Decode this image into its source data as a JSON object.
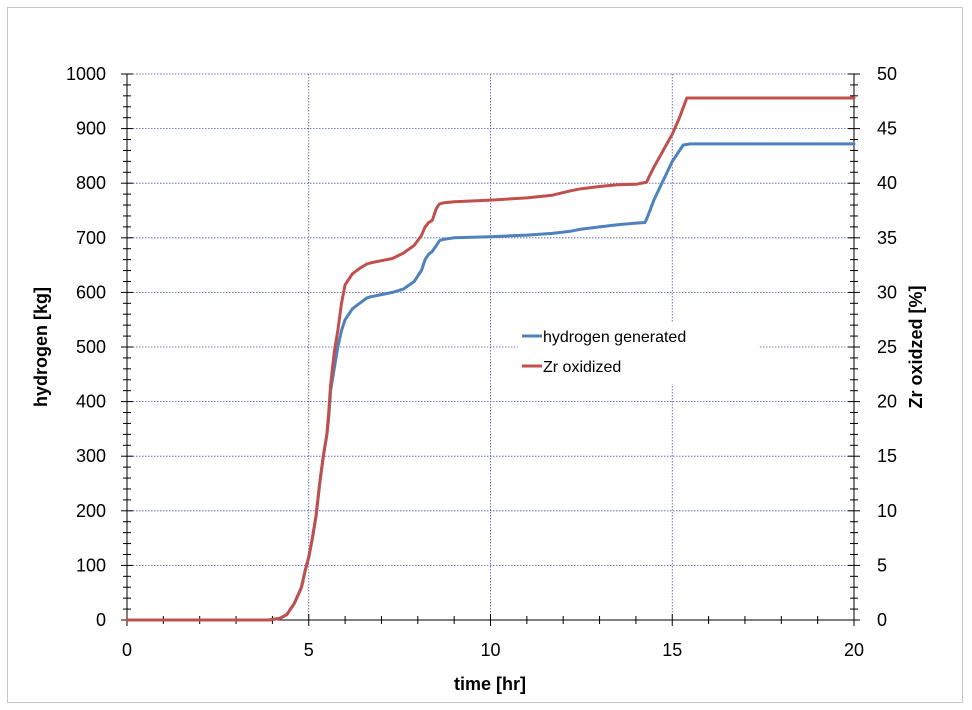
{
  "chart_data": {
    "type": "line",
    "title": "",
    "xlabel": "time [hr]",
    "ylabel": "hydrogen [kg]",
    "y2label": "Zr oxidzed [%]",
    "xlim": [
      0,
      20
    ],
    "ylim": [
      0,
      1000
    ],
    "y2lim": [
      0,
      50
    ],
    "x_ticks": [
      0,
      5,
      10,
      15,
      20
    ],
    "y_ticks": [
      0,
      100,
      200,
      300,
      400,
      500,
      600,
      700,
      800,
      900,
      1000
    ],
    "y2_ticks": [
      0,
      5,
      10,
      15,
      20,
      25,
      30,
      35,
      40,
      45,
      50
    ],
    "grid": true,
    "legend_position": "center-right",
    "series": [
      {
        "name": "hydrogen generated",
        "axis": "left",
        "color": "#4f81bd",
        "x": [
          0,
          3.9,
          4.2,
          4.4,
          4.6,
          4.8,
          4.9,
          5.0,
          5.1,
          5.2,
          5.3,
          5.4,
          5.5,
          5.55,
          5.6,
          5.65,
          5.7,
          5.75,
          5.8,
          5.9,
          6.0,
          6.2,
          6.4,
          6.6,
          6.7,
          7.0,
          7.3,
          7.6,
          7.9,
          8.1,
          8.2,
          8.3,
          8.4,
          8.5,
          8.55,
          8.6,
          8.7,
          9.0,
          10.0,
          11.0,
          11.7,
          12.2,
          12.5,
          13.0,
          13.5,
          14.0,
          14.25,
          14.3,
          14.5,
          15.0,
          15.3,
          15.5,
          17,
          20
        ],
        "y": [
          0,
          0,
          3,
          10,
          30,
          60,
          90,
          115,
          150,
          190,
          250,
          300,
          340,
          370,
          420,
          440,
          460,
          480,
          500,
          530,
          550,
          570,
          580,
          590,
          592,
          596,
          600,
          606,
          620,
          640,
          660,
          670,
          675,
          685,
          690,
          695,
          697,
          700,
          702,
          705,
          708,
          712,
          716,
          720,
          724,
          727,
          728,
          735,
          770,
          840,
          870,
          872,
          872,
          872
        ]
      },
      {
        "name": "Zr oxidized",
        "axis": "right",
        "color": "#c0504d",
        "x": [
          0,
          3.9,
          4.2,
          4.4,
          4.6,
          4.8,
          4.9,
          5.0,
          5.1,
          5.2,
          5.3,
          5.4,
          5.5,
          5.55,
          5.6,
          5.65,
          5.7,
          5.8,
          5.9,
          6.0,
          6.2,
          6.4,
          6.6,
          6.7,
          7.0,
          7.3,
          7.6,
          7.9,
          8.1,
          8.2,
          8.3,
          8.4,
          8.5,
          8.55,
          8.6,
          8.7,
          9.0,
          10.0,
          11.0,
          11.7,
          12.2,
          12.5,
          13.0,
          13.5,
          14.0,
          14.3,
          14.35,
          14.5,
          15.0,
          15.2,
          15.4,
          17,
          20
        ],
        "y": [
          0,
          0,
          0.15,
          0.5,
          1.5,
          3,
          4.5,
          5.8,
          7.5,
          9.5,
          12.5,
          15,
          17,
          19,
          21.5,
          23,
          24.5,
          26.5,
          29,
          30.7,
          31.7,
          32.2,
          32.6,
          32.7,
          32.9,
          33.1,
          33.6,
          34.3,
          35.2,
          36.0,
          36.4,
          36.6,
          37.6,
          37.9,
          38.1,
          38.2,
          38.3,
          38.45,
          38.65,
          38.9,
          39.3,
          39.5,
          39.7,
          39.85,
          39.9,
          40.1,
          40.5,
          41.5,
          44.5,
          46.0,
          47.8,
          47.8,
          47.8
        ]
      }
    ]
  }
}
